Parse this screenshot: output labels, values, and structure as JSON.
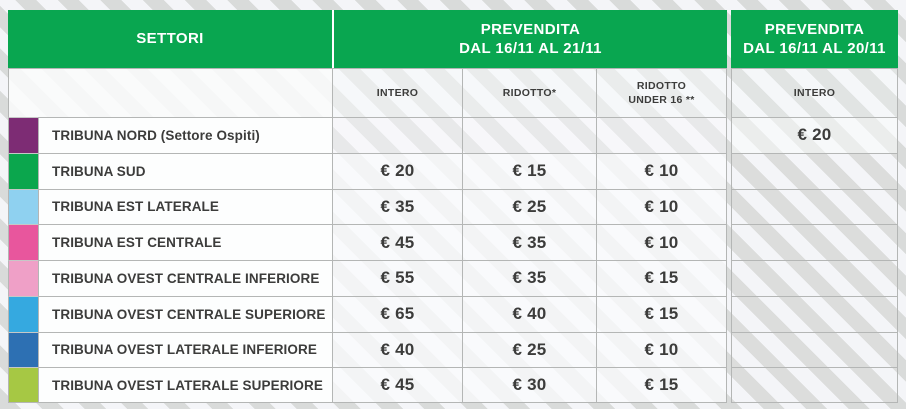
{
  "table": {
    "header": {
      "settori": "SETTORI",
      "prevendita_main_title": "PREVENDITA",
      "prevendita_main_dates": "DAL 16/11 AL 21/11",
      "prevendita_right_title": "PREVENDITA",
      "prevendita_right_dates": "DAL 16/11 AL 20/11"
    },
    "subheader": {
      "intero": "INTERO",
      "ridotto": "RIDOTTO*",
      "ridotto_under16_line1": "RIDOTTO",
      "ridotto_under16_line2": "UNDER 16 **",
      "intero_right": "INTERO"
    },
    "rows": [
      {
        "name": "TRIBUNA NORD (Settore Ospiti)",
        "color": "#7d2c74",
        "intero": "",
        "ridotto": "",
        "ridotto_u16": "",
        "prevendita_right": "€ 20"
      },
      {
        "name": "TRIBUNA SUD",
        "color": "#0ba64d",
        "intero": "€ 20",
        "ridotto": "€ 15",
        "ridotto_u16": "€ 10",
        "prevendita_right": ""
      },
      {
        "name": "TRIBUNA EST LATERALE",
        "color": "#8fd1f0",
        "intero": "€ 35",
        "ridotto": "€ 25",
        "ridotto_u16": "€ 10",
        "prevendita_right": ""
      },
      {
        "name": "TRIBUNA EST CENTRALE",
        "color": "#e8569d",
        "intero": "€ 45",
        "ridotto": "€ 35",
        "ridotto_u16": "€ 10",
        "prevendita_right": ""
      },
      {
        "name": "TRIBUNA OVEST CENTRALE INFERIORE",
        "color": "#efa0c7",
        "intero": "€ 55",
        "ridotto": "€ 35",
        "ridotto_u16": "€ 15",
        "prevendita_right": ""
      },
      {
        "name": "TRIBUNA OVEST CENTRALE SUPERIORE",
        "color": "#35a9e0",
        "intero": "€ 65",
        "ridotto": "€ 40",
        "ridotto_u16": "€ 15",
        "prevendita_right": ""
      },
      {
        "name": "TRIBUNA OVEST LATERALE INFERIORE",
        "color": "#2d70b3",
        "intero": "€ 40",
        "ridotto": "€ 25",
        "ridotto_u16": "€ 10",
        "prevendita_right": ""
      },
      {
        "name": "TRIBUNA OVEST LATERALE SUPERIORE",
        "color": "#a6c844",
        "intero": "€ 45",
        "ridotto": "€ 30",
        "ridotto_u16": "€ 15",
        "prevendita_right": ""
      }
    ],
    "colors": {
      "header_green": "#09a650",
      "text_dark": "#3c3c3b",
      "stripe_gray": "#d9dbda",
      "stripe_light": "#f4f5f8"
    }
  }
}
